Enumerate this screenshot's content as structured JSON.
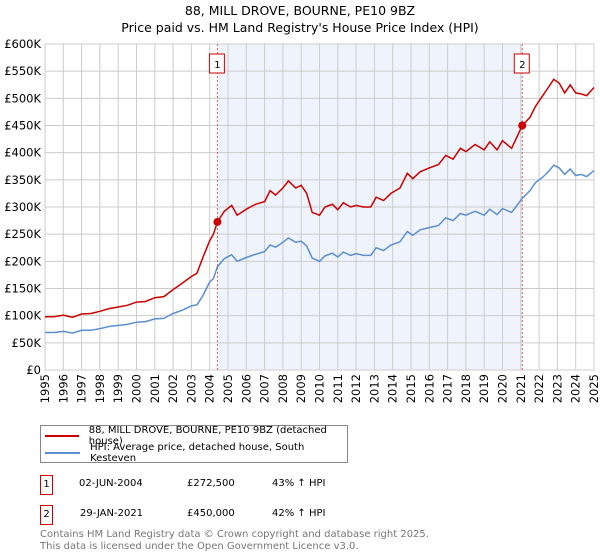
{
  "chart_data": {
    "type": "line",
    "title": "88, MILL DROVE, BOURNE, PE10 9BZ",
    "subtitle": "Price paid vs. HM Land Registry's House Price Index (HPI)",
    "xlim": [
      1995,
      2025
    ],
    "ylim": [
      0,
      600000
    ],
    "x_ticks": [
      "1995",
      "1996",
      "1997",
      "1998",
      "1999",
      "2000",
      "2001",
      "2002",
      "2003",
      "2004",
      "2005",
      "2006",
      "2007",
      "2008",
      "2009",
      "2010",
      "2011",
      "2012",
      "2013",
      "2014",
      "2015",
      "2016",
      "2017",
      "2018",
      "2019",
      "2020",
      "2021",
      "2022",
      "2023",
      "2024",
      "2025"
    ],
    "y_ticks": [
      {
        "v": 0,
        "label": "£0"
      },
      {
        "v": 50000,
        "label": "£50K"
      },
      {
        "v": 100000,
        "label": "£100K"
      },
      {
        "v": 150000,
        "label": "£150K"
      },
      {
        "v": 200000,
        "label": "£200K"
      },
      {
        "v": 250000,
        "label": "£250K"
      },
      {
        "v": 300000,
        "label": "£300K"
      },
      {
        "v": 350000,
        "label": "£350K"
      },
      {
        "v": 400000,
        "label": "£400K"
      },
      {
        "v": 450000,
        "label": "£450K"
      },
      {
        "v": 500000,
        "label": "£500K"
      },
      {
        "v": 550000,
        "label": "£550K"
      },
      {
        "v": 600000,
        "label": "£600K"
      }
    ],
    "grid": true,
    "shaded_range": [
      2004.42,
      2021.08
    ],
    "colors": {
      "property": "#cc0000",
      "hpi": "#5b8fd0",
      "shade": "#eef3fc"
    },
    "series": [
      {
        "name": "88, MILL DROVE, BOURNE, PE10 9BZ (detached house)",
        "color": "#cc0000",
        "points": [
          [
            1995,
            98000
          ],
          [
            1995.5,
            98000
          ],
          [
            1996,
            101000
          ],
          [
            1996.5,
            97000
          ],
          [
            1997,
            103000
          ],
          [
            1997.5,
            104000
          ],
          [
            1998,
            108000
          ],
          [
            1998.5,
            113000
          ],
          [
            1999,
            116000
          ],
          [
            1999.5,
            119000
          ],
          [
            2000,
            125000
          ],
          [
            2000.5,
            126000
          ],
          [
            2001,
            133000
          ],
          [
            2001.5,
            135000
          ],
          [
            2002,
            148000
          ],
          [
            2002.5,
            160000
          ],
          [
            2003,
            172000
          ],
          [
            2003.3,
            178000
          ],
          [
            2003.6,
            205000
          ],
          [
            2004,
            238000
          ],
          [
            2004.2,
            250000
          ],
          [
            2004.42,
            272500
          ],
          [
            2004.8,
            292000
          ],
          [
            2005.2,
            303000
          ],
          [
            2005.5,
            285000
          ],
          [
            2006,
            296000
          ],
          [
            2006.5,
            305000
          ],
          [
            2007,
            310000
          ],
          [
            2007.3,
            330000
          ],
          [
            2007.6,
            322000
          ],
          [
            2008,
            335000
          ],
          [
            2008.3,
            348000
          ],
          [
            2008.7,
            335000
          ],
          [
            2009,
            340000
          ],
          [
            2009.3,
            325000
          ],
          [
            2009.6,
            290000
          ],
          [
            2010,
            285000
          ],
          [
            2010.3,
            300000
          ],
          [
            2010.7,
            305000
          ],
          [
            2011,
            295000
          ],
          [
            2011.3,
            308000
          ],
          [
            2011.7,
            300000
          ],
          [
            2012,
            303000
          ],
          [
            2012.4,
            300000
          ],
          [
            2012.8,
            300000
          ],
          [
            2013.1,
            318000
          ],
          [
            2013.5,
            312000
          ],
          [
            2013.9,
            325000
          ],
          [
            2014.4,
            335000
          ],
          [
            2014.8,
            362000
          ],
          [
            2015.1,
            352000
          ],
          [
            2015.5,
            365000
          ],
          [
            2016,
            372000
          ],
          [
            2016.5,
            378000
          ],
          [
            2016.9,
            395000
          ],
          [
            2017.3,
            388000
          ],
          [
            2017.7,
            408000
          ],
          [
            2018,
            402000
          ],
          [
            2018.5,
            415000
          ],
          [
            2019,
            405000
          ],
          [
            2019.3,
            420000
          ],
          [
            2019.7,
            405000
          ],
          [
            2020,
            422000
          ],
          [
            2020.5,
            408000
          ],
          [
            2021.08,
            450000
          ],
          [
            2021.5,
            465000
          ],
          [
            2021.8,
            485000
          ],
          [
            2022.2,
            505000
          ],
          [
            2022.5,
            520000
          ],
          [
            2022.8,
            535000
          ],
          [
            2023.1,
            528000
          ],
          [
            2023.4,
            510000
          ],
          [
            2023.7,
            525000
          ],
          [
            2024,
            510000
          ],
          [
            2024.3,
            508000
          ],
          [
            2024.6,
            505000
          ],
          [
            2025,
            520000
          ]
        ]
      },
      {
        "name": "HPI: Average price, detached house, South Kesteven",
        "color": "#5b8fd0",
        "points": [
          [
            1995,
            69000
          ],
          [
            1995.5,
            69000
          ],
          [
            1996,
            71000
          ],
          [
            1996.5,
            68000
          ],
          [
            1997,
            73000
          ],
          [
            1997.5,
            73000
          ],
          [
            1998,
            76000
          ],
          [
            1998.5,
            80000
          ],
          [
            1999,
            82000
          ],
          [
            1999.5,
            84000
          ],
          [
            2000,
            88000
          ],
          [
            2000.5,
            89000
          ],
          [
            2001,
            94000
          ],
          [
            2001.5,
            95000
          ],
          [
            2002,
            104000
          ],
          [
            2002.5,
            110000
          ],
          [
            2003,
            118000
          ],
          [
            2003.3,
            120000
          ],
          [
            2003.6,
            135000
          ],
          [
            2004,
            162000
          ],
          [
            2004.2,
            168000
          ],
          [
            2004.42,
            190000
          ],
          [
            2004.8,
            205000
          ],
          [
            2005.2,
            212000
          ],
          [
            2005.5,
            200000
          ],
          [
            2006,
            207000
          ],
          [
            2006.5,
            213000
          ],
          [
            2007,
            218000
          ],
          [
            2007.3,
            230000
          ],
          [
            2007.6,
            226000
          ],
          [
            2008,
            235000
          ],
          [
            2008.3,
            243000
          ],
          [
            2008.7,
            235000
          ],
          [
            2009,
            237000
          ],
          [
            2009.3,
            228000
          ],
          [
            2009.6,
            206000
          ],
          [
            2010,
            200000
          ],
          [
            2010.3,
            210000
          ],
          [
            2010.7,
            215000
          ],
          [
            2011,
            208000
          ],
          [
            2011.3,
            217000
          ],
          [
            2011.7,
            211000
          ],
          [
            2012,
            214000
          ],
          [
            2012.4,
            211000
          ],
          [
            2012.8,
            211000
          ],
          [
            2013.1,
            225000
          ],
          [
            2013.5,
            220000
          ],
          [
            2013.9,
            230000
          ],
          [
            2014.4,
            236000
          ],
          [
            2014.8,
            255000
          ],
          [
            2015.1,
            248000
          ],
          [
            2015.5,
            258000
          ],
          [
            2016,
            262000
          ],
          [
            2016.5,
            266000
          ],
          [
            2016.9,
            280000
          ],
          [
            2017.3,
            275000
          ],
          [
            2017.7,
            288000
          ],
          [
            2018,
            285000
          ],
          [
            2018.5,
            292000
          ],
          [
            2019,
            285000
          ],
          [
            2019.3,
            296000
          ],
          [
            2019.7,
            286000
          ],
          [
            2020,
            297000
          ],
          [
            2020.5,
            290000
          ],
          [
            2021.08,
            316000
          ],
          [
            2021.5,
            330000
          ],
          [
            2021.8,
            345000
          ],
          [
            2022.2,
            355000
          ],
          [
            2022.5,
            365000
          ],
          [
            2022.8,
            377000
          ],
          [
            2023.1,
            372000
          ],
          [
            2023.4,
            360000
          ],
          [
            2023.7,
            370000
          ],
          [
            2024,
            358000
          ],
          [
            2024.3,
            360000
          ],
          [
            2024.6,
            356000
          ],
          [
            2025,
            367000
          ]
        ]
      }
    ],
    "annotations": [
      {
        "label": "1",
        "x": 2004.42,
        "y": 272500
      },
      {
        "label": "2",
        "x": 2021.08,
        "y": 450000
      }
    ]
  },
  "legend": {
    "property": "88, MILL DROVE, BOURNE, PE10 9BZ (detached house)",
    "hpi": "HPI: Average price, detached house, South Kesteven"
  },
  "sales": [
    {
      "num": "1",
      "date": "02-JUN-2004",
      "price": "£272,500",
      "delta": "43% ↑ HPI"
    },
    {
      "num": "2",
      "date": "29-JAN-2021",
      "price": "£450,000",
      "delta": "42% ↑ HPI"
    }
  ],
  "footer": {
    "line1": "Contains HM Land Registry data © Crown copyright and database right 2025.",
    "line2": "This data is licensed under the Open Government Licence v3.0."
  }
}
